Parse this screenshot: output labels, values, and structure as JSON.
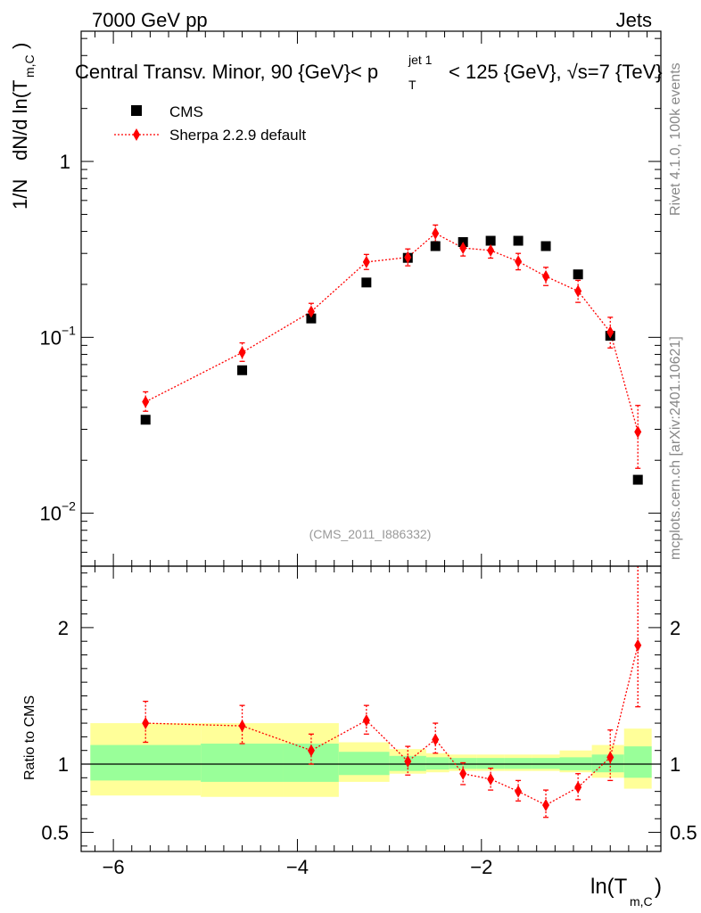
{
  "header": {
    "energy_label": "7000 GeV pp",
    "category_label": "Jets",
    "plot_title": "Central Transv. Minor, 90 {GeV}< p_T^{jet 1} < 125 {GeV}, √s=7 {TeV}",
    "title_part1": "Central Transv. Minor, 90 {GeV}< p",
    "title_sup": "jet 1",
    "title_sub": "T",
    "title_part2": "< 125 {GeV}, √s=7 {TeV}"
  },
  "side_labels": {
    "rivet": "Rivet 4.1.0,  100k events",
    "mcplots": "mcplots.cern.ch [arXiv:2401.10621]"
  },
  "analysis_id": "(CMS_2011_I886332)",
  "colors": {
    "data_marker": "#000000",
    "mc_line": "#ff0000",
    "band_inner": "#99ff99",
    "band_outer": "#ffff99"
  },
  "chart_data": {
    "type": "scatter",
    "main": {
      "ylabel_main": "dN/d ln(T",
      "ylabel_sub": "m,C",
      "ylabel_close": ")",
      "ylabel_prefix": "1/N",
      "yscale": "log",
      "ylim": [
        0.005,
        5.5
      ],
      "y_ticks": [
        {
          "value": 1,
          "label": "1"
        },
        {
          "value": 0.1,
          "label": "10",
          "exp": "−1"
        },
        {
          "value": 0.01,
          "label": "10",
          "exp": "−2"
        }
      ],
      "legend_position": "top-left"
    },
    "ratio": {
      "ylabel": "Ratio to CMS",
      "ylim": [
        0.36,
        2.45
      ],
      "y_ticks": [
        {
          "value": 0.5,
          "label": "0.5"
        },
        {
          "value": 1,
          "label": "1"
        },
        {
          "value": 2,
          "label": "2"
        }
      ]
    },
    "x": {
      "label_main": "ln(T",
      "label_sub": "m,C",
      "label_close": ")",
      "xlim": [
        -6.35,
        -0.05
      ],
      "ticks": [
        {
          "value": -6,
          "label": "−6"
        },
        {
          "value": -4,
          "label": "−4"
        },
        {
          "value": -2,
          "label": "−2"
        }
      ]
    },
    "series": [
      {
        "name": "CMS",
        "kind": "data",
        "x": [
          -5.65,
          -4.6,
          -3.85,
          -3.25,
          -2.8,
          -2.5,
          -2.2,
          -1.9,
          -1.6,
          -1.3,
          -0.95,
          -0.6,
          -0.3
        ],
        "y": [
          0.034,
          0.065,
          0.128,
          0.205,
          0.283,
          0.33,
          0.348,
          0.354,
          0.354,
          0.33,
          0.228,
          0.102,
          0.0155
        ]
      },
      {
        "name": "Sherpa 2.2.9 default",
        "kind": "mc",
        "x": [
          -5.65,
          -4.6,
          -3.85,
          -3.25,
          -2.8,
          -2.5,
          -2.2,
          -1.9,
          -1.6,
          -1.3,
          -0.95,
          -0.6,
          -0.3
        ],
        "y": [
          0.043,
          0.082,
          0.14,
          0.268,
          0.285,
          0.39,
          0.322,
          0.312,
          0.27,
          0.222,
          0.183,
          0.107,
          0.029
        ],
        "yerr_low": [
          0.005,
          0.009,
          0.015,
          0.025,
          0.03,
          0.04,
          0.032,
          0.03,
          0.028,
          0.025,
          0.025,
          0.02,
          0.011
        ],
        "yerr_high": [
          0.006,
          0.011,
          0.016,
          0.028,
          0.033,
          0.045,
          0.035,
          0.034,
          0.03,
          0.028,
          0.028,
          0.023,
          0.012
        ],
        "ratio": [
          1.3,
          1.28,
          1.1,
          1.32,
          1.02,
          1.18,
          0.93,
          0.89,
          0.8,
          0.7,
          0.83,
          1.05,
          1.87
        ],
        "ratio_err_low": [
          0.14,
          0.13,
          0.1,
          0.1,
          0.1,
          0.1,
          0.08,
          0.08,
          0.07,
          0.09,
          0.09,
          0.17,
          0.45
        ],
        "ratio_err_high": [
          0.16,
          0.15,
          0.12,
          0.11,
          0.11,
          0.12,
          0.08,
          0.08,
          0.08,
          0.11,
          0.1,
          0.2,
          0.7
        ]
      }
    ],
    "uncertainty_bands": {
      "bin_edges": [
        -6.25,
        -5.05,
        -4.15,
        -3.55,
        -3.0,
        -2.6,
        -2.35,
        -2.05,
        -1.75,
        -1.45,
        -1.15,
        -0.8,
        -0.45,
        -0.15
      ],
      "inner_low": [
        0.88,
        0.87,
        0.87,
        0.92,
        0.95,
        0.96,
        0.965,
        0.965,
        0.965,
        0.965,
        0.955,
        0.94,
        0.9
      ],
      "inner_high": [
        1.14,
        1.15,
        1.15,
        1.09,
        1.06,
        1.05,
        1.045,
        1.045,
        1.045,
        1.045,
        1.05,
        1.07,
        1.13
      ],
      "outer_low": [
        0.77,
        0.76,
        0.76,
        0.87,
        0.93,
        0.94,
        0.95,
        0.95,
        0.95,
        0.95,
        0.94,
        0.9,
        0.82
      ],
      "outer_high": [
        1.3,
        1.3,
        1.3,
        1.16,
        1.11,
        1.08,
        1.07,
        1.07,
        1.07,
        1.07,
        1.1,
        1.14,
        1.26
      ]
    }
  }
}
